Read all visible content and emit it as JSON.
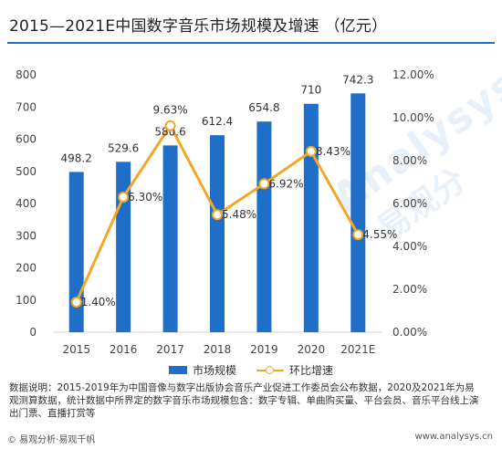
{
  "title": "2015—2021E中国数字音乐市场规模及增速 （亿元）",
  "chart_data": {
    "type": "bar",
    "categories": [
      "2015",
      "2016",
      "2017",
      "2018",
      "2019",
      "2020",
      "2021E"
    ],
    "series": [
      {
        "name": "市场规模",
        "type": "bar",
        "axis": "left",
        "values": [
          498.2,
          529.6,
          580.6,
          612.4,
          654.8,
          710,
          742.3
        ],
        "labels": [
          "498.2",
          "529.6",
          "580.6",
          "612.4",
          "654.8",
          "710",
          "742.3"
        ]
      },
      {
        "name": "环比增速",
        "type": "line",
        "axis": "right",
        "values": [
          1.4,
          6.3,
          9.63,
          5.48,
          6.92,
          8.43,
          4.55
        ],
        "labels": [
          "1.40%",
          "6.30%",
          "9.63%",
          "5.48%",
          "6.92%",
          "8.43%",
          "4.55%"
        ]
      }
    ],
    "ylim_left": [
      0,
      800
    ],
    "yticks_left": [
      "0",
      "100",
      "200",
      "300",
      "400",
      "500",
      "600",
      "700",
      "800"
    ],
    "ylim_right": [
      0,
      12
    ],
    "yticks_right": [
      "0.00%",
      "2.00%",
      "4.00%",
      "6.00%",
      "8.00%",
      "10.00%",
      "12.00%"
    ],
    "grid": false,
    "legend": "bottom",
    "colors": {
      "bar": "#1f6fc8",
      "line": "#f5a623"
    }
  },
  "note": "数据说明：2015-2019年为中国音像与数字出版协会音乐产业促进工作委员会公布数据，2020及2021年为易观测算数据，统计数据中所界定的数字音乐市场规模包含：数字专辑、单曲购买量、平台会员、音乐平台线上演出门票、直播打赏等",
  "watermark": {
    "line1": "Analysys",
    "line2": "易观分"
  },
  "footer": {
    "left": "© 易观分析·易观千帆",
    "right": "www.analysys.cn"
  }
}
